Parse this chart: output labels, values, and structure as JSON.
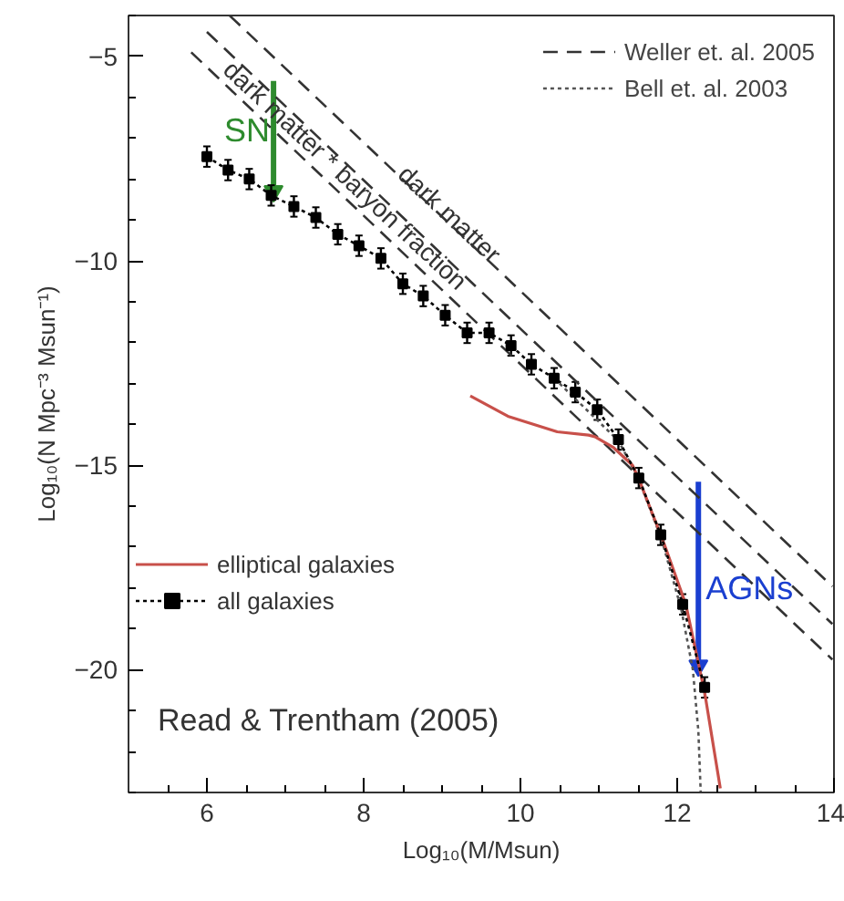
{
  "chart_data": {
    "type": "line",
    "xlabel": "Log₁₀(M/Msun)",
    "ylabel": "Log₁₀(N Mpc⁻³ Msun⁻¹)",
    "xlim": [
      5,
      14
    ],
    "ylim": [
      -23,
      -4
    ],
    "xticks": [
      6,
      8,
      10,
      12,
      14
    ],
    "yticks": [
      -5,
      -10,
      -15,
      -20
    ],
    "grid": false,
    "legend": "top right",
    "series": [
      {
        "name": "Weller et. al. 2005",
        "color": "#333333",
        "line_style": "dashed",
        "marker": "none",
        "x": [
          6.29,
          13.98
        ],
        "values": [
          -4.0,
          -17.96
        ]
      },
      {
        "color": "#333333",
        "line_style": "dashed",
        "marker": "none",
        "x": [
          6.0,
          13.98
        ],
        "values": [
          -4.4,
          -18.88
        ]
      },
      {
        "color": "#333333",
        "line_style": "dashed",
        "marker": "none",
        "x": [
          5.8,
          13.98
        ],
        "values": [
          -4.9,
          -19.75
        ]
      },
      {
        "name": "Bell et. al. 2003",
        "color": "#555555",
        "line_style": "dotted",
        "marker": "none",
        "x": [
          10.5,
          11.25,
          11.5,
          11.8,
          12.05,
          12.2,
          12.27,
          12.3
        ],
        "values": [
          -13.0,
          -14.4,
          -15.3,
          -16.8,
          -18.5,
          -20.0,
          -21.5,
          -23.0
        ]
      },
      {
        "name": "elliptical galaxies",
        "color": "#c8504a",
        "line_style": "solid",
        "marker": "none",
        "x": [
          9.36,
          9.84,
          10.47,
          10.87,
          10.95,
          11.19,
          11.43,
          11.51,
          11.83,
          12.11,
          12.35,
          12.55
        ],
        "values": [
          -13.3,
          -13.8,
          -14.18,
          -14.26,
          -14.3,
          -14.57,
          -15.0,
          -15.33,
          -16.9,
          -18.4,
          -20.55,
          -22.9
        ]
      },
      {
        "name": "all galaxies",
        "color": "#000000",
        "line_style": "dotted",
        "marker": "square",
        "x": [
          6.0,
          6.27,
          6.54,
          6.82,
          7.11,
          7.39,
          7.67,
          7.94,
          8.22,
          8.5,
          8.76,
          9.04,
          9.32,
          9.6,
          9.88,
          10.14,
          10.43,
          10.7,
          10.98,
          11.25,
          11.51,
          11.79,
          12.07,
          12.35
        ],
        "values": [
          -7.45,
          -7.78,
          -8.0,
          -8.4,
          -8.67,
          -8.94,
          -9.35,
          -9.63,
          -9.94,
          -10.56,
          -10.86,
          -11.33,
          -11.76,
          -11.76,
          -12.07,
          -12.53,
          -12.87,
          -13.21,
          -13.64,
          -14.37,
          -15.31,
          -16.7,
          -18.4,
          -20.43
        ],
        "errors": [
          0.25,
          0.25,
          0.25,
          0.25,
          0.25,
          0.25,
          0.25,
          0.25,
          0.25,
          0.25,
          0.25,
          0.25,
          0.25,
          0.25,
          0.25,
          0.25,
          0.25,
          0.25,
          0.25,
          0.25,
          0.25,
          0.25,
          0.25,
          0.25
        ]
      },
      {
        "color": "#2e8b2e",
        "line_style": "solid",
        "marker": "triangle",
        "x": [
          6.85,
          6.85
        ],
        "values": [
          -5.6,
          -8.3
        ]
      },
      {
        "color": "#1a3fd0",
        "line_style": "solid",
        "marker": "triangle",
        "x": [
          12.27,
          12.27
        ],
        "values": [
          -15.4,
          -19.9
        ]
      }
    ],
    "annotations": [
      {
        "text": "SN",
        "x": 6.85,
        "y": -6.8
      },
      {
        "text": "AGNs",
        "x": 12.27,
        "y": -18.0
      },
      {
        "text": "dark matter",
        "x": 9.1,
        "y": -8.85
      },
      {
        "text": "dark matter * baryon fraction",
        "x": 7.77,
        "y": -7.9
      },
      "Read & Trentham (2005)"
    ]
  }
}
